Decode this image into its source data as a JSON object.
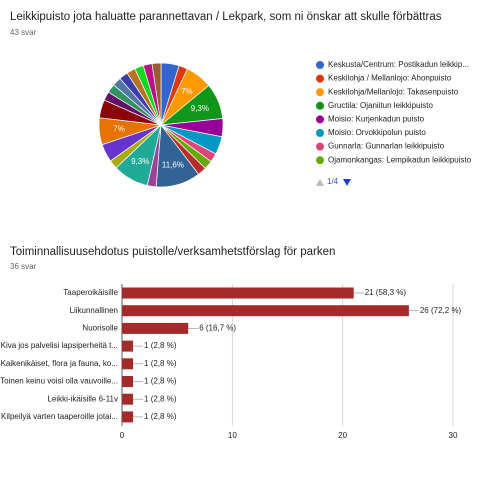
{
  "chart_data": [
    {
      "type": "pie",
      "title": "Leikkipuisto jota haluatte parannettavan / Lekpark, som ni önskar att skulle förbättras",
      "subtitle": "43 svar",
      "categories": [
        "Keskusta/Centrum: Postikadun leikkip...",
        "Keskilohja / Mellanlojo: Ahonpuisto",
        "Keskilohja/Mellanlojo: Takasenpuisto",
        "Gructila: Ojaniitun leikkipuisto",
        "Moisio: Kurjenkadun puisto",
        "Moisio: Orvokkipolun puisto",
        "Gunnarla: Gunnarlan leikkipuisto",
        "Ojamonkangas: Lempikadun leikkipuisto",
        null,
        null,
        null,
        null,
        null,
        null,
        null,
        null,
        null,
        null,
        null,
        null,
        null,
        null,
        null,
        null
      ],
      "values": [
        4.7,
        2.3,
        7,
        9.3,
        4.7,
        4.7,
        2.3,
        2.3,
        2.3,
        11.6,
        2.3,
        9.3,
        2.3,
        4.7,
        7,
        4.7,
        2.3,
        2.3,
        2.3,
        2.3,
        2.3,
        2.3,
        2.3,
        2.3
      ],
      "value_labels": [
        null,
        null,
        "7%",
        "9,3%",
        null,
        null,
        null,
        null,
        null,
        "11,6%",
        null,
        "9,3%",
        null,
        null,
        "7%",
        null,
        null,
        null,
        null,
        null,
        null,
        null,
        null,
        null
      ],
      "colors": [
        "#3366cc",
        "#dc3912",
        "#ff9900",
        "#109618",
        "#990099",
        "#0099c6",
        "#dd4477",
        "#66aa00",
        "#b82e2e",
        "#316395",
        "#994499",
        "#22aa99",
        "#aaaa11",
        "#6633cc",
        "#e67300",
        "#8b0707",
        "#651067",
        "#329262",
        "#5574a6",
        "#3b3eac",
        "#b77322",
        "#16d620",
        "#b91383",
        "#9c5935"
      ],
      "legend_page": "1/4"
    },
    {
      "type": "hbar",
      "title": "Toiminnallisuusehdotus puistolle/verksamhetstförslag för parken",
      "subtitle": "36 svar",
      "categories": [
        "Taaperoikäisille",
        "Liikunnallinen",
        "Nuorisolle",
        "Kiva jos palvelisi lapsiperheitä t...",
        "Kaikenikäiset, flora ja fauna, ko...",
        "Toinen keinu voisi olla vauvoille...",
        "Leikki-ikäisille 6-11v",
        "Kilpeilyä varten taaperoille jotai..."
      ],
      "values": [
        21,
        26,
        6,
        1,
        1,
        1,
        1,
        1
      ],
      "value_labels": [
        "21 (58,3 %)",
        "26 (72,2 %)",
        "6 (16,7 %)",
        "1 (2,8 %)",
        "1 (2,8 %)",
        "1 (2,8 %)",
        "1 (2,8 %)",
        "1 (2,8 %)"
      ],
      "color": "#a52a2a",
      "xlim": [
        0,
        30
      ],
      "xticks": [
        0,
        10,
        20,
        30
      ],
      "grid": true
    }
  ]
}
